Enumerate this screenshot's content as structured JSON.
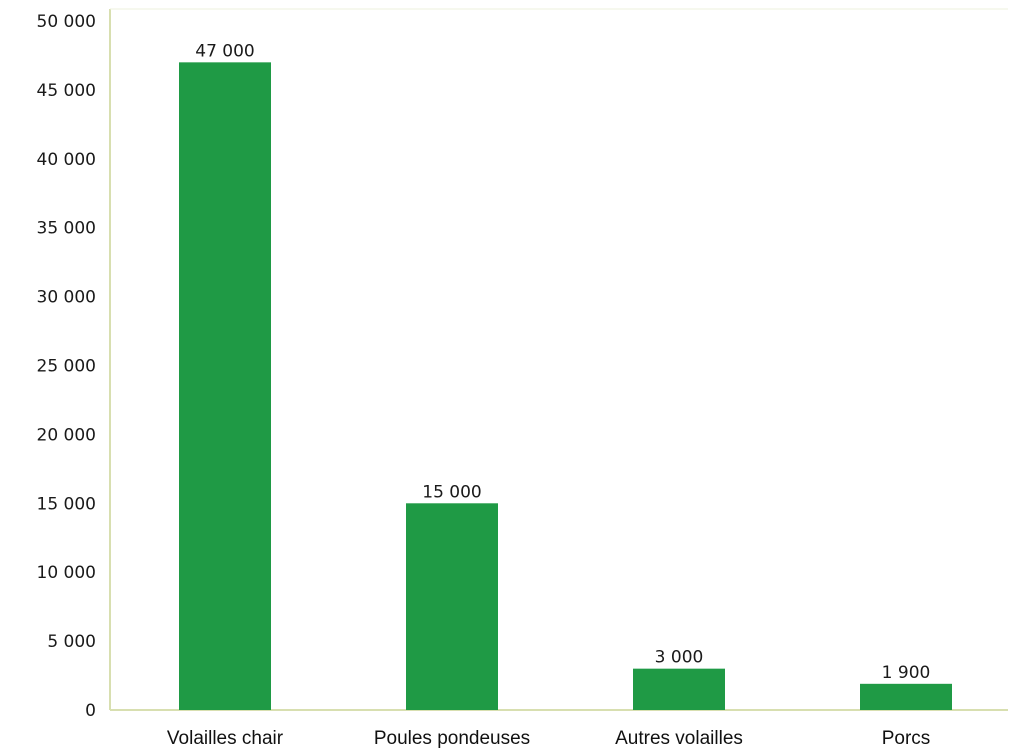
{
  "colors": {
    "bar": "#1f9a45",
    "axis": "#d8dfb0",
    "text": "#1a1a1a"
  },
  "chart_data": {
    "type": "bar",
    "categories": [
      "Volailles chair",
      "Poules pondeuses",
      "Autres volailles",
      "Porcs"
    ],
    "values": [
      47000,
      15000,
      3000,
      1900
    ],
    "value_labels": [
      "47 000",
      "15 000",
      "3 000",
      "1 900"
    ],
    "yticks": [
      0,
      5000,
      10000,
      15000,
      20000,
      25000,
      30000,
      35000,
      40000,
      45000,
      50000
    ],
    "ytick_labels": [
      "0",
      "5 000",
      "10 000",
      "15 000",
      "20 000",
      "25 000",
      "30 000",
      "35 000",
      "40 000",
      "45 000",
      "50 000"
    ],
    "ylim": [
      0,
      50000
    ],
    "grid": false,
    "legend": "none"
  }
}
